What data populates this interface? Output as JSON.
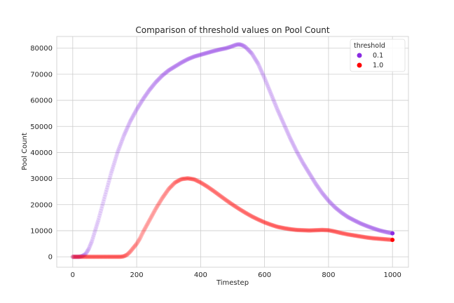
{
  "chart_data": {
    "type": "scatter",
    "title": "Comparison of threshold values on Pool Count",
    "xlabel": "Timestep",
    "ylabel": "Pool Count",
    "xlim": [
      -50,
      1050
    ],
    "ylim": [
      -4000,
      84500
    ],
    "xticks": [
      0,
      200,
      400,
      600,
      800,
      1000
    ],
    "yticks": [
      0,
      10000,
      20000,
      30000,
      40000,
      50000,
      60000,
      70000,
      80000
    ],
    "grid": true,
    "legend": {
      "title": "threshold",
      "placement": "top-right"
    },
    "series": [
      {
        "name": "0.1",
        "color": "#8a2be2",
        "x": [
          0,
          20,
          30,
          40,
          50,
          60,
          70,
          80,
          90,
          100,
          120,
          140,
          160,
          180,
          200,
          220,
          240,
          260,
          280,
          300,
          320,
          340,
          360,
          380,
          400,
          420,
          440,
          460,
          480,
          500,
          510,
          520,
          530,
          540,
          560,
          580,
          600,
          620,
          640,
          660,
          680,
          700,
          720,
          740,
          760,
          780,
          800,
          820,
          840,
          860,
          880,
          900,
          920,
          940,
          960,
          980,
          1000
        ],
        "y": [
          0,
          0,
          300,
          1000,
          3000,
          6000,
          10000,
          14000,
          18500,
          23000,
          32000,
          40000,
          46500,
          52000,
          56500,
          60500,
          64000,
          67000,
          69500,
          71500,
          73000,
          74500,
          75800,
          76800,
          77500,
          78200,
          78900,
          79500,
          80000,
          80800,
          81300,
          81500,
          81200,
          80500,
          78000,
          74000,
          68500,
          62500,
          56500,
          51000,
          45500,
          40500,
          36000,
          32000,
          28000,
          24500,
          21500,
          19000,
          17000,
          15300,
          14000,
          12800,
          11800,
          10900,
          10100,
          9500,
          9000
        ]
      },
      {
        "name": "1.0",
        "color": "#ff0000",
        "x": [
          0,
          40,
          80,
          120,
          150,
          160,
          170,
          180,
          190,
          200,
          210,
          220,
          240,
          260,
          280,
          300,
          320,
          340,
          360,
          380,
          400,
          420,
          440,
          460,
          480,
          500,
          520,
          540,
          560,
          580,
          600,
          620,
          640,
          660,
          680,
          700,
          720,
          740,
          760,
          780,
          800,
          820,
          840,
          860,
          880,
          900,
          920,
          940,
          960,
          980,
          1000
        ],
        "y": [
          0,
          0,
          0,
          0,
          0,
          200,
          800,
          2000,
          3500,
          5000,
          7000,
          9500,
          14000,
          18500,
          22500,
          26000,
          28500,
          29800,
          30100,
          29700,
          28500,
          27000,
          25300,
          23500,
          21700,
          20000,
          18400,
          16900,
          15500,
          14300,
          13200,
          12300,
          11500,
          11000,
          10600,
          10300,
          10200,
          10100,
          10200,
          10300,
          10200,
          9700,
          9100,
          8600,
          8200,
          7800,
          7400,
          7100,
          6900,
          6700,
          6500
        ]
      }
    ]
  }
}
